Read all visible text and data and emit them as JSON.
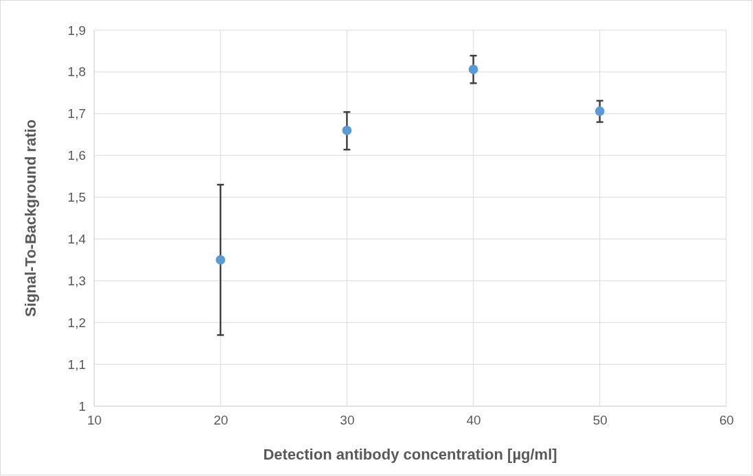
{
  "chart_data": {
    "type": "scatter",
    "xlabel": "Detection antibody concentration [µg/ml]",
    "ylabel": "Signal-To-Background ratio",
    "x": [
      20,
      30,
      40,
      50
    ],
    "series": [
      {
        "color": "#5b9bd5",
        "values": [
          1.35,
          1.66,
          1.806,
          1.706
        ],
        "errors": [
          [
            1.17,
            1.53
          ],
          [
            1.614,
            1.704
          ],
          [
            1.773,
            1.839
          ],
          [
            1.68,
            1.731
          ]
        ]
      }
    ],
    "xlim": [
      10,
      60
    ],
    "xticks": [
      10,
      20,
      30,
      40,
      50,
      60
    ],
    "ylim": [
      1,
      1.9
    ],
    "yticks": [
      1,
      {
        "value": 1.1,
        "label": "1,1"
      },
      {
        "value": 1.2,
        "label": "1,2"
      },
      {
        "value": 1.3,
        "label": "1,3"
      },
      {
        "value": 1.4,
        "label": "1,4"
      },
      {
        "value": 1.5,
        "label": "1,5"
      },
      {
        "value": 1.6,
        "label": "1,6"
      },
      {
        "value": 1.7,
        "label": "1,7"
      },
      {
        "value": 1.8,
        "label": "1,8"
      },
      {
        "value": 1.9,
        "label": "1,9"
      }
    ],
    "grid": true,
    "marker": "circle"
  }
}
